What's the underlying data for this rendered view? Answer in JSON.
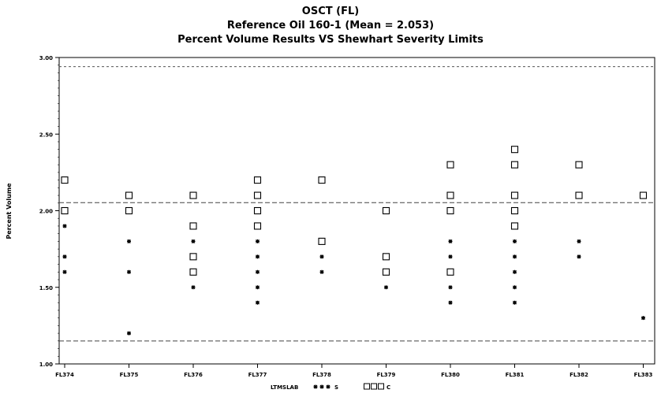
{
  "chart_data": {
    "type": "scatter",
    "title": "OSCT  (FL)",
    "subtitle_1": "Reference Oil 160-1  (Mean = 2.053)",
    "subtitle_2": "Percent Volume Results VS Shewhart Severity Limits",
    "ylabel": "Percent Volume",
    "xlabel": "",
    "ylim": [
      1.0,
      3.0
    ],
    "y_ticks": [
      "1.00",
      "1.50",
      "2.00",
      "2.50",
      "3.00"
    ],
    "categories": [
      "FL374",
      "FL375",
      "FL376",
      "FL377",
      "FL378",
      "FL379",
      "FL380",
      "FL381",
      "FL382",
      "FL383"
    ],
    "reference_lines": {
      "mean": 2.053,
      "upper_limit": 2.94,
      "lower_limit": 1.15
    },
    "series": [
      {
        "name": "S",
        "marker": "star",
        "points": [
          [
            "FL374",
            1.9
          ],
          [
            "FL374",
            1.7
          ],
          [
            "FL374",
            1.6
          ],
          [
            "FL375",
            1.8
          ],
          [
            "FL375",
            1.6
          ],
          [
            "FL375",
            1.2
          ],
          [
            "FL376",
            1.8
          ],
          [
            "FL376",
            1.7
          ],
          [
            "FL376",
            1.6
          ],
          [
            "FL376",
            1.5
          ],
          [
            "FL377",
            1.9
          ],
          [
            "FL377",
            1.8
          ],
          [
            "FL377",
            1.7
          ],
          [
            "FL377",
            1.6
          ],
          [
            "FL377",
            1.5
          ],
          [
            "FL377",
            1.4
          ],
          [
            "FL378",
            1.8
          ],
          [
            "FL378",
            1.7
          ],
          [
            "FL378",
            1.6
          ],
          [
            "FL379",
            1.7
          ],
          [
            "FL379",
            1.6
          ],
          [
            "FL379",
            1.5
          ],
          [
            "FL380",
            1.8
          ],
          [
            "FL380",
            1.7
          ],
          [
            "FL380",
            1.6
          ],
          [
            "FL380",
            1.5
          ],
          [
            "FL380",
            1.4
          ],
          [
            "FL381",
            1.9
          ],
          [
            "FL381",
            1.8
          ],
          [
            "FL381",
            1.7
          ],
          [
            "FL381",
            1.6
          ],
          [
            "FL381",
            1.5
          ],
          [
            "FL381",
            1.4
          ],
          [
            "FL382",
            1.8
          ],
          [
            "FL382",
            1.7
          ],
          [
            "FL383",
            1.3
          ]
        ]
      },
      {
        "name": "C",
        "marker": "square",
        "points": [
          [
            "FL374",
            2.2
          ],
          [
            "FL374",
            2.0
          ],
          [
            "FL375",
            2.1
          ],
          [
            "FL375",
            2.0
          ],
          [
            "FL376",
            2.1
          ],
          [
            "FL376",
            1.9
          ],
          [
            "FL376",
            1.7
          ],
          [
            "FL376",
            1.6
          ],
          [
            "FL377",
            2.2
          ],
          [
            "FL377",
            2.1
          ],
          [
            "FL377",
            2.0
          ],
          [
            "FL377",
            1.9
          ],
          [
            "FL378",
            2.2
          ],
          [
            "FL378",
            1.8
          ],
          [
            "FL379",
            2.0
          ],
          [
            "FL379",
            1.7
          ],
          [
            "FL379",
            1.6
          ],
          [
            "FL380",
            2.3
          ],
          [
            "FL380",
            2.1
          ],
          [
            "FL380",
            2.0
          ],
          [
            "FL380",
            1.6
          ],
          [
            "FL381",
            2.4
          ],
          [
            "FL381",
            2.3
          ],
          [
            "FL381",
            2.1
          ],
          [
            "FL381",
            2.0
          ],
          [
            "FL381",
            1.9
          ],
          [
            "FL382",
            2.3
          ],
          [
            "FL382",
            2.1
          ],
          [
            "FL383",
            2.1
          ]
        ]
      }
    ],
    "legend": {
      "label": "LTMSLAB",
      "position": "bottom",
      "entries": [
        {
          "symbol": "* * *",
          "name": "S"
        },
        {
          "symbol": "□□□",
          "name": "C"
        }
      ]
    },
    "grid": false,
    "colors": {
      "marker": "#000000",
      "limit_line": "#555555",
      "mean_line": "#444444"
    }
  }
}
